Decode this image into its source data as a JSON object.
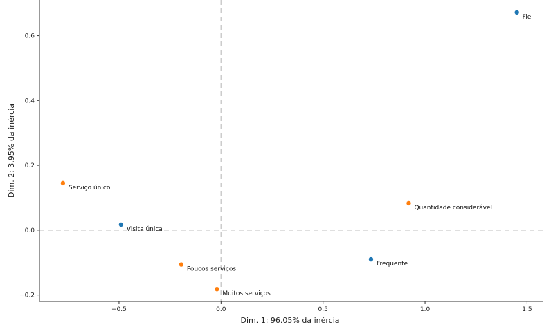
{
  "chart_data": {
    "type": "scatter",
    "xlabel": "Dim. 1: 96.05% da inércia",
    "ylabel": "Dim. 2: 3.95% da inércia",
    "xlim": [
      -0.89,
      1.58
    ],
    "ylim": [
      -0.22,
      0.71
    ],
    "xticks": [
      -0.5,
      0.0,
      0.5,
      1.0,
      1.5
    ],
    "xtick_labels": [
      "−0.5",
      "0.0",
      "0.5",
      "1.0",
      "1.5"
    ],
    "yticks": [
      -0.2,
      0.0,
      0.2,
      0.4,
      0.6
    ],
    "ytick_labels": [
      "−0.2",
      "0.0",
      "0.2",
      "0.4",
      "0.6"
    ],
    "reference_lines": {
      "x": 0,
      "y": 0,
      "style": "dashed"
    },
    "grid": false,
    "series": [
      {
        "color": "#1f77b4",
        "points": [
          {
            "x": 1.45,
            "y": 0.672,
            "label": "Fiel"
          },
          {
            "x": -0.49,
            "y": 0.017,
            "label": "Visita única"
          },
          {
            "x": 0.735,
            "y": -0.09,
            "label": "Frequente"
          }
        ]
      },
      {
        "color": "#ff7f0e",
        "points": [
          {
            "x": -0.775,
            "y": 0.145,
            "label": "Serviço único"
          },
          {
            "x": 0.92,
            "y": 0.083,
            "label": "Quantidade considerável"
          },
          {
            "x": -0.195,
            "y": -0.106,
            "label": "Poucos serviços"
          },
          {
            "x": -0.02,
            "y": -0.182,
            "label": "Muitos serviços"
          }
        ]
      }
    ]
  }
}
